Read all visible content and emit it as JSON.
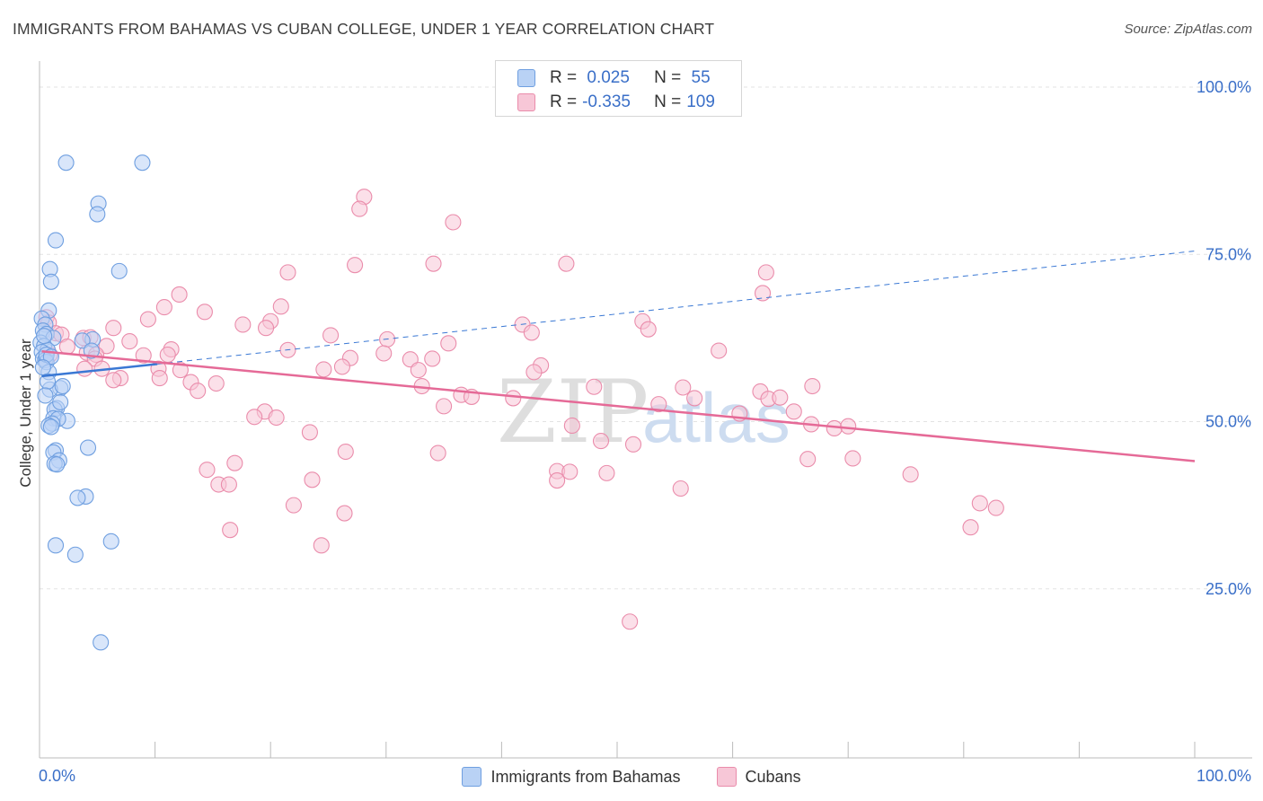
{
  "title": "IMMIGRANTS FROM BAHAMAS VS CUBAN COLLEGE, UNDER 1 YEAR CORRELATION CHART",
  "source": "Source: ZipAtlas.com",
  "watermark": {
    "zip": "ZIP",
    "atlas": "atlas"
  },
  "colors": {
    "blue": "#6f9fe0",
    "blue_fill": "#b9d2f5",
    "blue_line": "#3a78d4",
    "pink": "#ea8cab",
    "pink_fill": "#f7c7d7",
    "pink_line": "#e56a97",
    "axis_text": "#3a6fc8",
    "grid": "#e3e3e3"
  },
  "legend": {
    "series1_label": "Immigrants from Bahamas",
    "series2_label": "Cubans",
    "r_label": "R =",
    "n_label": "N =",
    "series1_r": " 0.025",
    "series1_n": " 55",
    "series2_r": "-0.335",
    "series2_n": "109"
  },
  "chart_data": {
    "type": "scatter",
    "title": "IMMIGRANTS FROM BAHAMAS VS CUBAN COLLEGE, UNDER 1 YEAR CORRELATION CHART",
    "xlabel": "",
    "ylabel": "College, Under 1 year",
    "xlim": [
      0,
      100
    ],
    "ylim": [
      0,
      100
    ],
    "x_tick_labels": [
      "0.0%",
      "100.0%"
    ],
    "y_tick_labels": [
      "25.0%",
      "50.0%",
      "75.0%",
      "100.0%"
    ],
    "y_ticks": [
      25,
      50,
      75,
      100
    ],
    "series": [
      {
        "name": "Immigrants from Bahamas",
        "r": 0.025,
        "n": 55,
        "trend": {
          "x0": 0.2,
          "y0": 56.8,
          "x1": 10.2,
          "y1": 58.6,
          "x_dash_end": 100,
          "y_dash_end": 75.5
        },
        "points": [
          [
            2.3,
            88.7
          ],
          [
            8.9,
            88.7
          ],
          [
            5.1,
            82.6
          ],
          [
            5.0,
            81.0
          ],
          [
            1.4,
            77.1
          ],
          [
            6.9,
            72.5
          ],
          [
            0.9,
            72.8
          ],
          [
            1.0,
            70.9
          ],
          [
            0.8,
            66.6
          ],
          [
            0.2,
            65.4
          ],
          [
            0.5,
            64.5
          ],
          [
            0.3,
            63.6
          ],
          [
            0.6,
            63.1
          ],
          [
            1.2,
            62.5
          ],
          [
            0.1,
            61.8
          ],
          [
            4.6,
            62.3
          ],
          [
            3.7,
            62.1
          ],
          [
            0.4,
            61.3
          ],
          [
            0.7,
            60.7
          ],
          [
            0.2,
            60.4
          ],
          [
            0.3,
            59.4
          ],
          [
            0.5,
            59.2
          ],
          [
            0.6,
            58.9
          ],
          [
            4.5,
            60.6
          ],
          [
            0.8,
            57.4
          ],
          [
            1.8,
            55.0
          ],
          [
            0.9,
            54.8
          ],
          [
            1.5,
            52.0
          ],
          [
            1.3,
            51.8
          ],
          [
            1.2,
            50.5
          ],
          [
            2.4,
            50.1
          ],
          [
            1.6,
            50.4
          ],
          [
            1.1,
            49.7
          ],
          [
            0.8,
            49.4
          ],
          [
            1.0,
            49.2
          ],
          [
            4.2,
            46.1
          ],
          [
            1.4,
            45.7
          ],
          [
            1.2,
            45.4
          ],
          [
            1.7,
            44.2
          ],
          [
            1.3,
            43.7
          ],
          [
            1.5,
            43.6
          ],
          [
            4.0,
            38.8
          ],
          [
            3.3,
            38.6
          ],
          [
            6.2,
            32.1
          ],
          [
            1.4,
            31.5
          ],
          [
            3.1,
            30.1
          ],
          [
            5.3,
            17.0
          ],
          [
            0.4,
            62.8
          ],
          [
            0.6,
            60.0
          ],
          [
            1.0,
            59.7
          ],
          [
            0.3,
            58.1
          ],
          [
            0.7,
            56.0
          ],
          [
            2.0,
            55.3
          ],
          [
            0.5,
            53.9
          ],
          [
            1.8,
            52.9
          ]
        ]
      },
      {
        "name": "Cubans",
        "r": -0.335,
        "n": 109,
        "trend": {
          "x0": 0.2,
          "y0": 60.5,
          "x1": 100,
          "y1": 44.1
        },
        "points": [
          [
            28.1,
            83.6
          ],
          [
            27.7,
            81.8
          ],
          [
            35.8,
            79.8
          ],
          [
            27.3,
            73.4
          ],
          [
            34.1,
            73.6
          ],
          [
            45.6,
            73.6
          ],
          [
            21.5,
            72.3
          ],
          [
            62.9,
            72.3
          ],
          [
            12.1,
            69.0
          ],
          [
            62.6,
            69.2
          ],
          [
            20.9,
            67.2
          ],
          [
            10.8,
            67.1
          ],
          [
            14.3,
            66.4
          ],
          [
            9.4,
            65.3
          ],
          [
            0.6,
            65.6
          ],
          [
            0.8,
            64.8
          ],
          [
            20.0,
            65.0
          ],
          [
            52.2,
            65.0
          ],
          [
            17.6,
            64.5
          ],
          [
            19.6,
            64.0
          ],
          [
            41.8,
            64.5
          ],
          [
            52.7,
            63.8
          ],
          [
            1.4,
            63.2
          ],
          [
            6.4,
            64.0
          ],
          [
            1.9,
            63.0
          ],
          [
            3.8,
            62.5
          ],
          [
            4.4,
            62.6
          ],
          [
            25.2,
            62.9
          ],
          [
            42.6,
            63.3
          ],
          [
            7.8,
            62.0
          ],
          [
            30.1,
            62.3
          ],
          [
            35.4,
            61.7
          ],
          [
            2.4,
            61.2
          ],
          [
            5.8,
            61.3
          ],
          [
            4.1,
            60.3
          ],
          [
            0.9,
            60.0
          ],
          [
            21.5,
            60.7
          ],
          [
            29.8,
            60.2
          ],
          [
            11.4,
            60.8
          ],
          [
            9.0,
            59.9
          ],
          [
            11.1,
            60.0
          ],
          [
            4.9,
            60.0
          ],
          [
            4.8,
            59.4
          ],
          [
            26.9,
            59.5
          ],
          [
            34.0,
            59.4
          ],
          [
            32.1,
            59.3
          ],
          [
            58.8,
            60.6
          ],
          [
            26.2,
            58.2
          ],
          [
            43.4,
            58.4
          ],
          [
            5.4,
            57.9
          ],
          [
            12.2,
            57.7
          ],
          [
            10.3,
            57.9
          ],
          [
            24.6,
            57.8
          ],
          [
            42.8,
            57.4
          ],
          [
            3.9,
            57.9
          ],
          [
            32.8,
            57.7
          ],
          [
            7.0,
            56.5
          ],
          [
            10.4,
            56.5
          ],
          [
            6.4,
            56.2
          ],
          [
            13.1,
            55.9
          ],
          [
            15.3,
            55.7
          ],
          [
            33.1,
            55.3
          ],
          [
            48.0,
            55.2
          ],
          [
            55.7,
            55.1
          ],
          [
            66.9,
            55.3
          ],
          [
            13.7,
            54.6
          ],
          [
            62.4,
            54.5
          ],
          [
            36.5,
            54.0
          ],
          [
            37.4,
            53.7
          ],
          [
            41.0,
            53.5
          ],
          [
            56.7,
            53.5
          ],
          [
            63.1,
            53.4
          ],
          [
            64.1,
            53.6
          ],
          [
            53.6,
            52.6
          ],
          [
            35.0,
            52.3
          ],
          [
            19.5,
            51.5
          ],
          [
            60.6,
            51.2
          ],
          [
            65.3,
            51.5
          ],
          [
            18.6,
            50.7
          ],
          [
            20.5,
            50.6
          ],
          [
            46.1,
            49.4
          ],
          [
            66.8,
            49.6
          ],
          [
            68.8,
            49.0
          ],
          [
            70.0,
            49.3
          ],
          [
            23.4,
            48.4
          ],
          [
            48.6,
            47.1
          ],
          [
            51.4,
            46.6
          ],
          [
            26.5,
            45.5
          ],
          [
            34.5,
            45.3
          ],
          [
            66.5,
            44.4
          ],
          [
            70.4,
            44.5
          ],
          [
            16.9,
            43.8
          ],
          [
            14.5,
            42.8
          ],
          [
            44.8,
            42.6
          ],
          [
            45.9,
            42.5
          ],
          [
            49.1,
            42.3
          ],
          [
            75.4,
            42.1
          ],
          [
            23.6,
            41.3
          ],
          [
            44.8,
            41.2
          ],
          [
            15.5,
            40.6
          ],
          [
            16.4,
            40.6
          ],
          [
            55.5,
            40.0
          ],
          [
            81.4,
            37.8
          ],
          [
            22.0,
            37.5
          ],
          [
            82.8,
            37.1
          ],
          [
            26.4,
            36.3
          ],
          [
            16.5,
            33.8
          ],
          [
            80.6,
            34.2
          ],
          [
            24.4,
            31.5
          ],
          [
            51.1,
            20.1
          ]
        ]
      }
    ]
  }
}
